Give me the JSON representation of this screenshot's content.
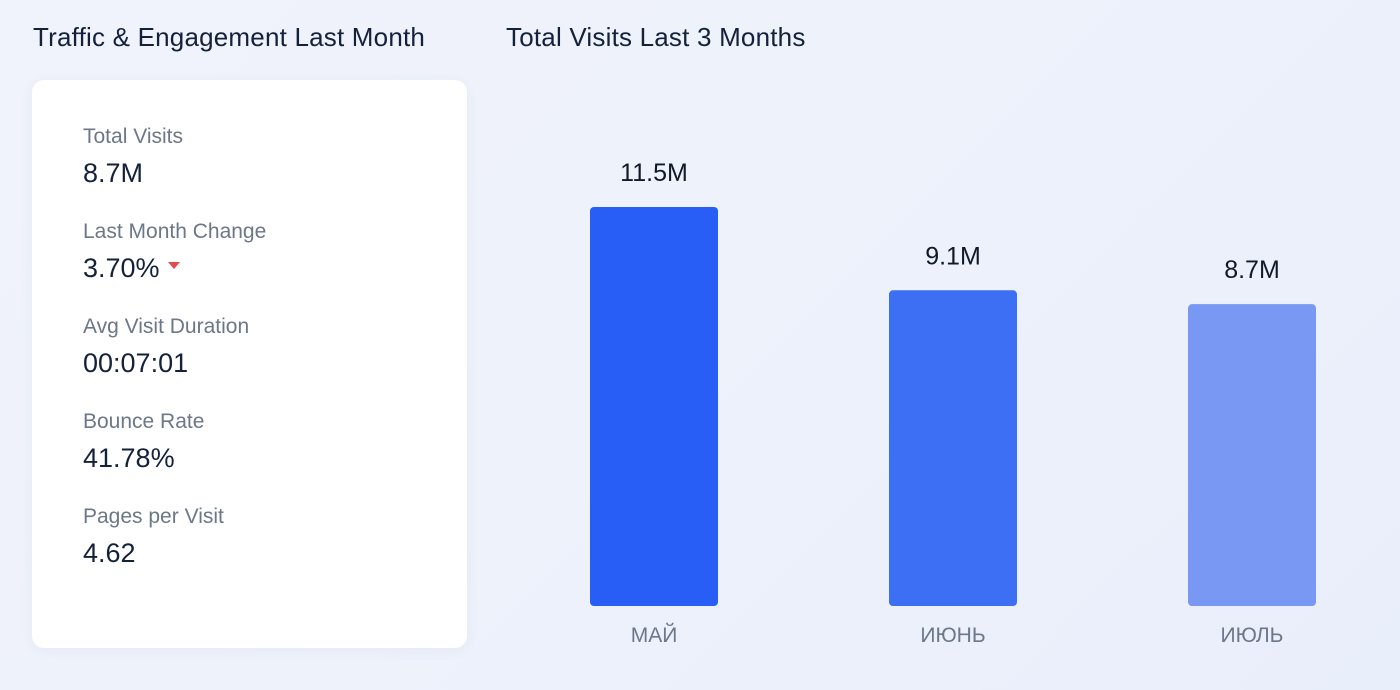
{
  "left_panel": {
    "title": "Traffic & Engagement Last Month",
    "stats": [
      {
        "label": "Total Visits",
        "value": "8.7M"
      },
      {
        "label": "Last Month Change",
        "value": "3.70%",
        "trend": "down",
        "trend_icon": "caret-down-icon",
        "trend_color": "#e5484d"
      },
      {
        "label": "Avg Visit Duration",
        "value": "00:07:01"
      },
      {
        "label": "Bounce Rate",
        "value": "41.78%"
      },
      {
        "label": "Pages per Visit",
        "value": "4.62"
      }
    ]
  },
  "right_panel": {
    "title": "Total Visits Last 3 Months"
  },
  "chart_data": {
    "type": "bar",
    "title": "Total Visits Last 3 Months",
    "categories": [
      "МАЙ",
      "ИЮНЬ",
      "ИЮЛЬ"
    ],
    "values": [
      11.5,
      9.1,
      8.7
    ],
    "value_labels": [
      "11.5M",
      "9.1M",
      "8.7M"
    ],
    "unit": "M",
    "ylim": [
      0,
      11.5
    ],
    "grid": false,
    "colors": [
      "#285ef5",
      "#3d6ff4",
      "#7898f4"
    ]
  }
}
